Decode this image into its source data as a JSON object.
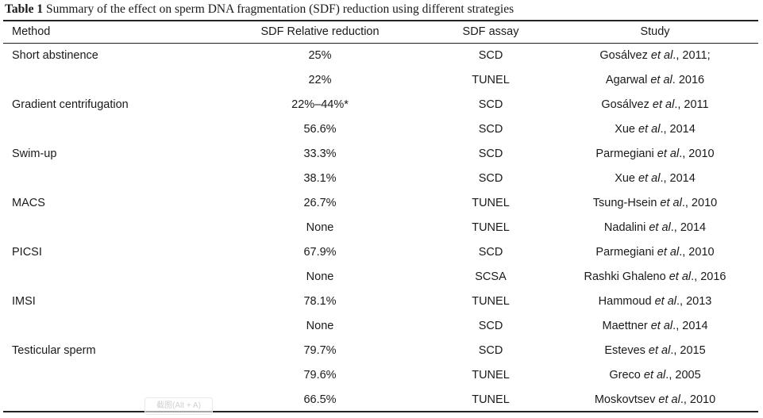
{
  "caption": {
    "label": "Table 1",
    "text": " Summary of the effect on sperm DNA fragmentation (SDF) reduction using different strategies"
  },
  "headers": {
    "method": "Method",
    "reduction": "SDF Relative reduction",
    "assay": "SDF assay",
    "study": "Study"
  },
  "rows": [
    {
      "method": "Short abstinence",
      "reduction": "25%",
      "assay": "SCD",
      "study_author": "Gosálvez ",
      "study_etal": "et al",
      "study_rest": "., 2011;"
    },
    {
      "method": "",
      "reduction": "22%",
      "assay": "TUNEL",
      "study_author": "Agarwal ",
      "study_etal": "et al",
      "study_rest": ". 2016"
    },
    {
      "method": "Gradient centrifugation",
      "reduction": "22%–44%*",
      "assay": "SCD",
      "study_author": "Gosálvez ",
      "study_etal": "et al",
      "study_rest": "., 2011"
    },
    {
      "method": "",
      "reduction": "56.6%",
      "assay": "SCD",
      "study_author": "Xue ",
      "study_etal": "et al",
      "study_rest": "., 2014"
    },
    {
      "method": "Swim-up",
      "reduction": "33.3%",
      "assay": "SCD",
      "study_author": "Parmegiani ",
      "study_etal": "et al",
      "study_rest": "., 2010"
    },
    {
      "method": "",
      "reduction": "38.1%",
      "assay": "SCD",
      "study_author": "Xue ",
      "study_etal": "et al",
      "study_rest": "., 2014"
    },
    {
      "method": "MACS",
      "reduction": "26.7%",
      "assay": "TUNEL",
      "study_author": "Tsung-Hsein ",
      "study_etal": "et al",
      "study_rest": "., 2010"
    },
    {
      "method": "",
      "reduction": "None",
      "assay": "TUNEL",
      "study_author": "Nadalini ",
      "study_etal": "et al",
      "study_rest": "., 2014"
    },
    {
      "method": "PICSI",
      "reduction": "67.9%",
      "assay": "SCD",
      "study_author": "Parmegiani ",
      "study_etal": "et al",
      "study_rest": "., 2010"
    },
    {
      "method": "",
      "reduction": "None",
      "assay": "SCSA",
      "study_author": "Rashki Ghaleno ",
      "study_etal": "et al",
      "study_rest": "., 2016"
    },
    {
      "method": "IMSI",
      "reduction": "78.1%",
      "assay": "TUNEL",
      "study_author": "Hammoud ",
      "study_etal": "et al",
      "study_rest": "., 2013"
    },
    {
      "method": "",
      "reduction": "None",
      "assay": "SCD",
      "study_author": "Maettner ",
      "study_etal": "et al",
      "study_rest": "., 2014"
    },
    {
      "method": "Testicular sperm",
      "reduction": "79.7%",
      "assay": "SCD",
      "study_author": "Esteves ",
      "study_etal": "et al",
      "study_rest": "., 2015"
    },
    {
      "method": "",
      "reduction": "79.6%",
      "assay": "TUNEL",
      "study_author": "Greco ",
      "study_etal": "et al",
      "study_rest": "., 2005"
    },
    {
      "method": "",
      "reduction": "66.5%",
      "assay": "TUNEL",
      "study_author": "Moskovtsev ",
      "study_etal": "et al",
      "study_rest": "., 2010"
    }
  ],
  "watermark": {
    "text": "截图(Alt + A)"
  }
}
